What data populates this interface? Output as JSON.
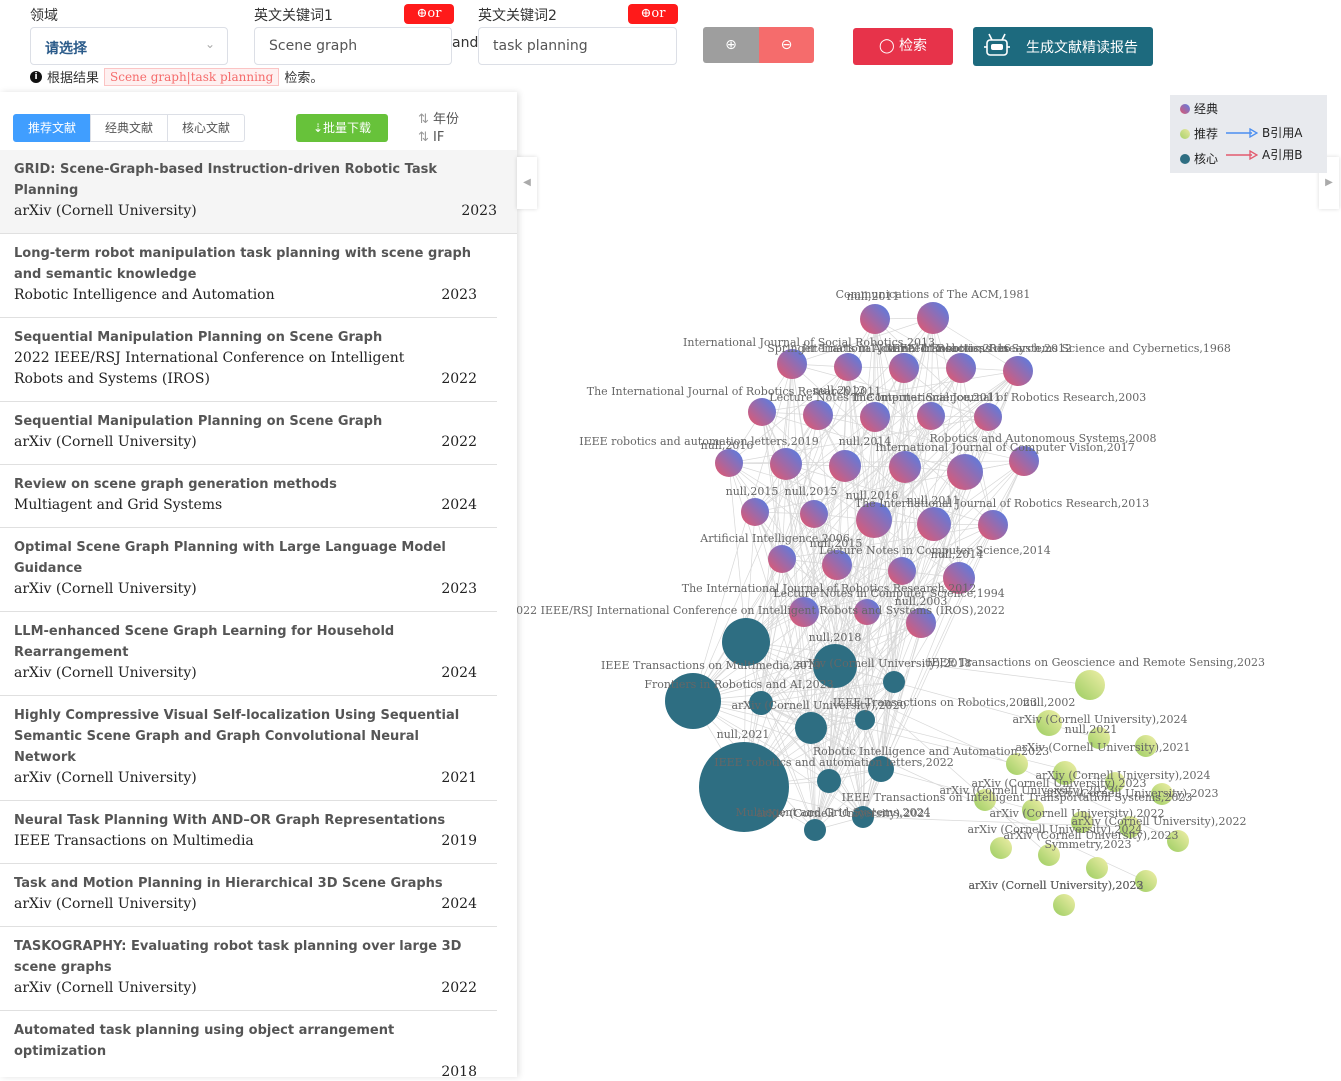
{
  "search": {
    "domain_label": "领域",
    "domain_value": "请选择",
    "kw1_label": "英文关键词1",
    "kw1_value": "Scene graph",
    "kw2_label": "英文关键词2",
    "kw2_value": "task planning",
    "or_label": "⊕or",
    "and_label": "and",
    "plus_icon": "⊕",
    "minus_icon": "⊖",
    "search_label": "◯ 检索",
    "report_label": "生成文献精读报告"
  },
  "result": {
    "prefix": "根据结果",
    "tag": "Scene graph|task planning",
    "suffix": "检索。"
  },
  "left_panel": {
    "tabs": [
      "推荐文献",
      "经典文献",
      "核心文献"
    ],
    "download_label": "⇣批量下载",
    "sort_year": "年份",
    "sort_if": "IF",
    "papers": [
      {
        "title": "GRID: Scene-Graph-based Instruction-driven Robotic Task Planning",
        "venue": "arXiv (Cornell University)",
        "year": "2023"
      },
      {
        "title": "Long-term robot manipulation task planning with scene graph and semantic knowledge",
        "venue": "Robotic Intelligence and Automation",
        "year": "2023"
      },
      {
        "title": "Sequential Manipulation Planning on Scene Graph",
        "venue": "2022 IEEE/RSJ International Conference on Intelligent Robots and Systems (IROS)",
        "year": "2022"
      },
      {
        "title": "Sequential Manipulation Planning on Scene Graph",
        "venue": "arXiv (Cornell University)",
        "year": "2022"
      },
      {
        "title": "Review on scene graph generation methods",
        "venue": "Multiagent and Grid Systems",
        "year": "2024"
      },
      {
        "title": "Optimal Scene Graph Planning with Large Language Model Guidance",
        "venue": "arXiv (Cornell University)",
        "year": "2023"
      },
      {
        "title": "LLM-enhanced Scene Graph Learning for Household Rearrangement",
        "venue": "arXiv (Cornell University)",
        "year": "2024"
      },
      {
        "title": "Highly Compressive Visual Self-localization Using Sequential Semantic Scene Graph and Graph Convolutional Neural Network",
        "venue": "arXiv (Cornell University)",
        "year": "2021"
      },
      {
        "title": "Neural Task Planning With AND–OR Graph Representations",
        "venue": "IEEE Transactions on Multimedia",
        "year": "2019"
      },
      {
        "title": "Task and Motion Planning in Hierarchical 3D Scene Graphs",
        "venue": "arXiv (Cornell University)",
        "year": "2024"
      },
      {
        "title": "TASKOGRAPHY: Evaluating robot task planning over large 3D scene graphs",
        "venue": "arXiv (Cornell University)",
        "year": "2022"
      },
      {
        "title": "Automated task planning using object arrangement optimization",
        "venue": "",
        "year": "2018"
      }
    ]
  },
  "legend": {
    "classic": "经典",
    "recommended": "推荐",
    "core": "核心",
    "b_cites_a": "B引用A",
    "a_cites_b": "A引用B",
    "colors": {
      "classic_a": "#e0566b",
      "classic_b": "#5a7ee8",
      "recommended_a": "#a8d16a",
      "recommended_b": "#e8e8a0",
      "core": "#2e6e82",
      "arrow_blue": "#4a8ef0",
      "arrow_red": "#e35a6e"
    }
  },
  "graph": {
    "labels": [
      "Communications of The ACM,1981",
      "null,2011",
      "International Journal of Social Robotics,2013",
      "Springer Tracts in Advanced Robotics,2016",
      "IEEE Transactions on Systems Science and Cybernetics,1968",
      "International Journal of Robotics Research,2012",
      "The International Journal of Robotics Research,2011",
      "null,2013",
      "Lecture Notes in Computer Science,2011",
      "The International Journal of Robotics Research,2003",
      "IEEE robotics and automation letters,2019",
      "null,2016",
      "null,2014",
      "Robotics and Autonomous Systems,2008",
      "International Journal of Computer Vision,2017",
      "null,2015",
      "null,2015",
      "null,2016",
      "null,2011",
      "The International Journal of Robotics Research,2013",
      "Artificial Intelligence,2006",
      "null,2015",
      "Lecture Notes in Computer Science,2014",
      "null,2014",
      "The International Journal of Robotics Research,2012",
      "Lecture Notes in Computer Science,1994",
      "2022 IEEE/RSJ International Conference on Intelligent Robots and Systems (IROS),2022",
      "null,2003",
      "null,2018",
      "IEEE Transactions on Multimedia,2019",
      "arXiv (Cornell University),2018",
      "IEEE Transactions on Geoscience and Remote Sensing,2023",
      "Frontiers in Robotics and AI,2023",
      "arXiv (Cornell University),2020",
      "IEEE Transactions on Robotics,2023",
      "null,2002",
      "arXiv (Cornell University),2024",
      "null,2021",
      "null,2021",
      "arXiv (Cornell University),2021",
      "Robotic Intelligence and Automation,2023",
      "arXiv (Cornell University),2023",
      "arXiv (Cornell University),2024",
      "IEEE robotics and automation letters,2022",
      "arXiv (Cornell University),2023",
      "arXiv (Cornell University),2023",
      "IEEE Transactions on Intelligent Transportation Systems,2023",
      "arXiv (Cornell University),2021",
      "arXiv (Cornell University),2022",
      "Multiagent and Grid Systems,2024",
      "arXiv (Cornell University),2022",
      "arXiv (Cornell University),2024",
      "arXiv (Cornell University),2023",
      "Symmetry,2023",
      "arXiv (Cornell University),2022",
      "arXiv (Cornell University),2023",
      "arXiv (Cornell University),2023"
    ]
  }
}
